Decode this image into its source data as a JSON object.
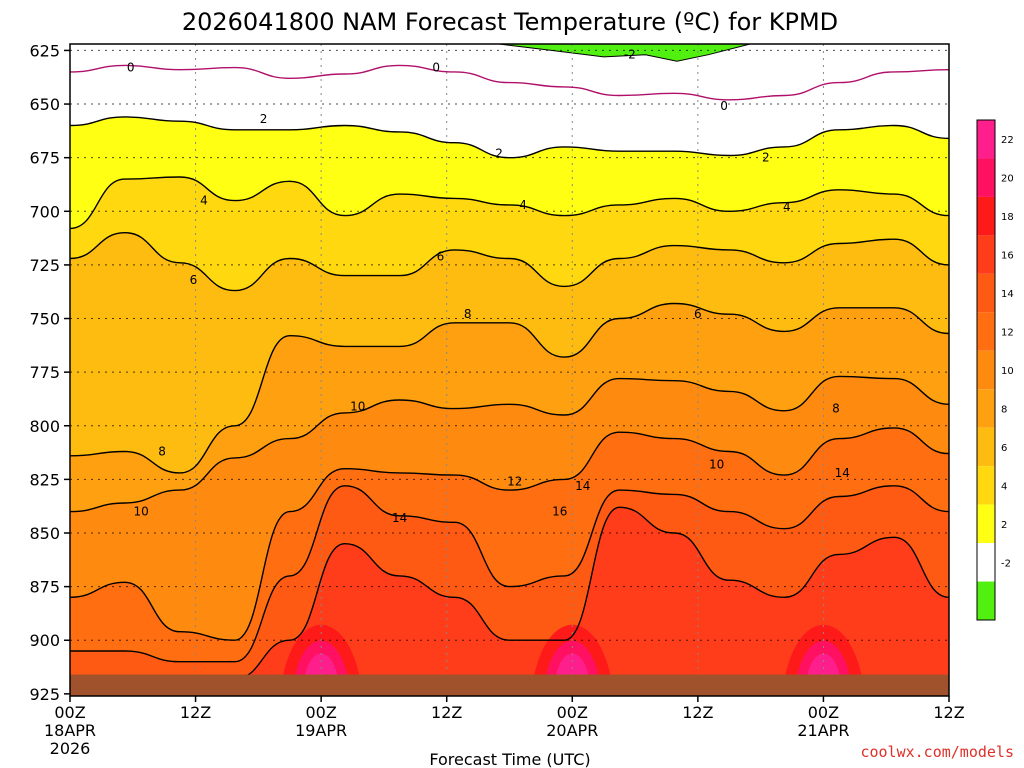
{
  "chart_data": {
    "type": "heatmap",
    "title": "2026041800 NAM Forecast Temperature (ºC) for KPMD",
    "xlabel": "Forecast Time (UTC)",
    "ylabel": "",
    "x_range_hours": [
      0,
      84
    ],
    "y_range_hpa": [
      622,
      926
    ],
    "y_ticks": [
      "625",
      "650",
      "675",
      "700",
      "725",
      "750",
      "775",
      "800",
      "825",
      "850",
      "875",
      "900",
      "925"
    ],
    "x_ticks": [
      {
        "hour": 0,
        "top": "00Z",
        "mid": "18APR",
        "bot": "2026"
      },
      {
        "hour": 12,
        "top": "12Z",
        "mid": "",
        "bot": ""
      },
      {
        "hour": 24,
        "top": "00Z",
        "mid": "19APR",
        "bot": ""
      },
      {
        "hour": 36,
        "top": "12Z",
        "mid": "",
        "bot": ""
      },
      {
        "hour": 48,
        "top": "00Z",
        "mid": "20APR",
        "bot": ""
      },
      {
        "hour": 60,
        "top": "12Z",
        "mid": "",
        "bot": ""
      },
      {
        "hour": 72,
        "top": "00Z",
        "mid": "21APR",
        "bot": ""
      },
      {
        "hour": 84,
        "top": "12Z",
        "mid": "",
        "bot": ""
      }
    ],
    "colorbar": {
      "labels": [
        "22",
        "20",
        "18",
        "16",
        "14",
        "12",
        "10",
        "8",
        "6",
        "4",
        "2",
        "-2"
      ],
      "colors": [
        "#ff1f8c",
        "#ff1060",
        "#ff1a1a",
        "#ff3d1a",
        "#ff5a14",
        "#ff6e10",
        "#ff8a10",
        "#ffa010",
        "#ffbc10",
        "#ffd810",
        "#ffff14",
        "#ffffff",
        "#52f010"
      ]
    },
    "series": [
      {
        "name": "0",
        "levels_hpa": [
          635,
          632,
          634,
          633,
          638,
          636,
          632,
          635,
          640,
          642,
          646,
          645,
          648,
          646,
          640,
          635,
          634
        ]
      },
      {
        "name": "2",
        "levels_hpa": [
          660,
          656,
          658,
          662,
          662,
          660,
          663,
          668,
          675,
          670,
          672,
          672,
          674,
          670,
          662,
          660,
          666
        ]
      },
      {
        "name": "4",
        "levels_hpa": [
          708,
          685,
          684,
          695,
          686,
          702,
          692,
          694,
          697,
          702,
          697,
          694,
          700,
          696,
          690,
          692,
          702
        ]
      },
      {
        "name": "6",
        "levels_hpa": [
          722,
          710,
          724,
          737,
          722,
          730,
          730,
          718,
          722,
          735,
          722,
          716,
          718,
          724,
          715,
          713,
          725
        ]
      },
      {
        "name": "8",
        "levels_hpa": [
          814,
          812,
          822,
          800,
          758,
          763,
          763,
          752,
          752,
          768,
          750,
          743,
          748,
          756,
          745,
          745,
          757
        ]
      },
      {
        "name": "10",
        "levels_hpa": [
          840,
          836,
          830,
          815,
          806,
          794,
          788,
          792,
          790,
          795,
          778,
          779,
          784,
          793,
          777,
          778,
          790
        ]
      },
      {
        "name": "12",
        "levels_hpa": [
          880,
          873,
          896,
          900,
          840,
          820,
          822,
          823,
          830,
          825,
          803,
          806,
          812,
          823,
          806,
          801,
          813
        ]
      },
      {
        "name": "14",
        "levels_hpa": [
          905,
          905,
          910,
          910,
          870,
          828,
          842,
          845,
          875,
          870,
          830,
          832,
          840,
          848,
          833,
          828,
          840
        ]
      },
      {
        "name": "16",
        "levels_hpa": [
          918,
          918,
          918,
          918,
          900,
          855,
          870,
          880,
          900,
          900,
          838,
          850,
          872,
          880,
          860,
          852,
          880
        ]
      }
    ],
    "series_label_positions": [
      {
        "name": "0",
        "labels": [
          [
            5.8,
            633
          ],
          [
            35,
            633
          ],
          [
            62.5,
            651
          ]
        ]
      },
      {
        "name": "2",
        "labels": [
          [
            18.5,
            657
          ],
          [
            41,
            673
          ],
          [
            66.5,
            675
          ]
        ]
      },
      {
        "name": "4",
        "labels": [
          [
            12.8,
            695
          ],
          [
            43.3,
            697
          ],
          [
            68.5,
            698
          ]
        ]
      },
      {
        "name": "6",
        "labels": [
          [
            11.8,
            732
          ],
          [
            35.4,
            721
          ],
          [
            60,
            748
          ]
        ]
      },
      {
        "name": "8",
        "labels": [
          [
            8.8,
            812
          ],
          [
            38,
            748
          ],
          [
            73.2,
            792
          ]
        ]
      },
      {
        "name": "10",
        "labels": [
          [
            6.8,
            840
          ],
          [
            27.5,
            791
          ],
          [
            61.8,
            818
          ]
        ]
      },
      {
        "name": "12",
        "labels": [
          [
            42.5,
            826
          ]
        ]
      },
      {
        "name": "14",
        "labels": [
          [
            31.5,
            843
          ],
          [
            49,
            828
          ],
          [
            73.8,
            822
          ]
        ]
      },
      {
        "name": "16",
        "labels": [
          [
            46.8,
            840
          ]
        ]
      }
    ],
    "extra_contour_labels": [
      {
        "name": "-2",
        "hour": 53.5,
        "hpa": 627
      }
    ],
    "ground_level_hpa": 916
  },
  "credit": "coolwx.com/models"
}
